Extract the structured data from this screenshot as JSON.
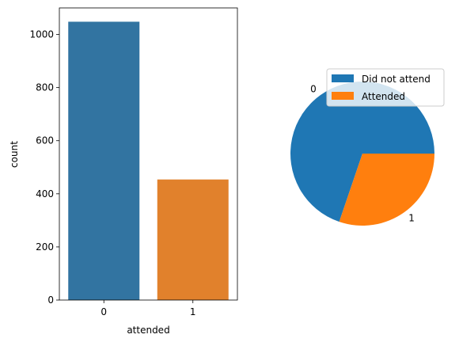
{
  "chart_data": [
    {
      "type": "bar",
      "categories": [
        "0",
        "1"
      ],
      "values": [
        1048,
        454
      ],
      "xlabel": "attended",
      "ylabel": "count",
      "ylim": [
        0,
        1100
      ],
      "yticks": [
        0,
        200,
        400,
        600,
        800,
        1000
      ],
      "colors": [
        "#3274a1",
        "#e1812c"
      ],
      "grid": false
    },
    {
      "type": "pie",
      "labels": [
        "0",
        "1"
      ],
      "values": [
        1048,
        454
      ],
      "colors": [
        "#1f77b4",
        "#ff7f0e"
      ],
      "legend": {
        "position": "upper-right",
        "entries": [
          "Did not attend",
          "Attended"
        ]
      }
    }
  ]
}
